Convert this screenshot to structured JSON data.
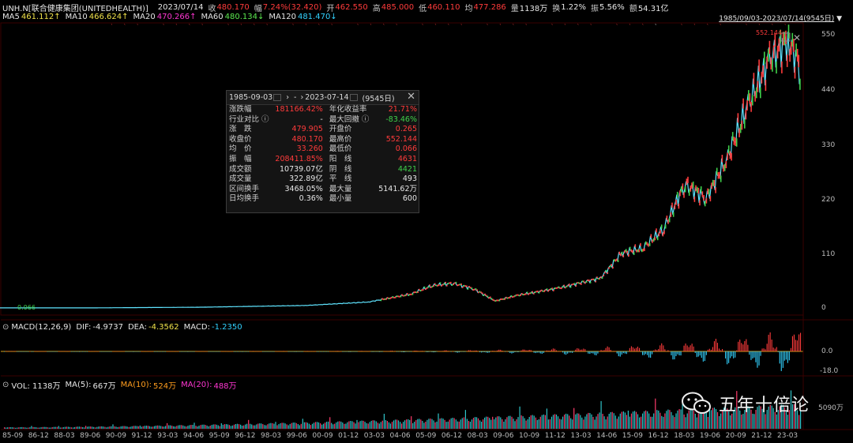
{
  "header": {
    "symbol": "UNH.N[联合健康集团(UNITEDHEALTH)]",
    "date": "2023/07/14",
    "close_lbl": "收",
    "close": "480.170",
    "chg_lbl": "幅",
    "chg": "7.24%(32.420)",
    "open_lbl": "开",
    "open": "462.550",
    "high_lbl": "高",
    "high": "485.000",
    "low_lbl": "低",
    "low": "460.110",
    "avg_lbl": "均",
    "avg": "477.286",
    "vol_lbl": "量",
    "vol": "1138万",
    "turn_lbl": "换",
    "turn": "1.22%",
    "amp_lbl": "振",
    "amp": "5.56%",
    "amt_lbl": "额",
    "amt": "54.31亿"
  },
  "ma": {
    "ma5_lbl": "MA5",
    "ma5": "461.112↑",
    "ma10_lbl": "MA10",
    "ma10": "466.624↑",
    "ma20_lbl": "MA20",
    "ma20": "470.266↑",
    "ma60_lbl": "MA60",
    "ma60": "480.134↓",
    "ma120_lbl": "MA120",
    "ma120": "481.470↓"
  },
  "range_label": "1985/09/03-2023/07/14(9545日)",
  "price_axis": [
    "550",
    "440",
    "330",
    "220",
    "110",
    "0"
  ],
  "low_marker": "0.066",
  "high_marker": "552.144",
  "popup": {
    "start_date": "1985-09-03",
    "sep": "-",
    "end_date": "2023-07-14",
    "days": "(9545日)",
    "close_x": "✕",
    "rows": [
      {
        "k1": "涨跌幅",
        "v1": "181166.42%",
        "c1": "red",
        "k2": "年化收益率",
        "v2": "21.71%",
        "c2": "red"
      },
      {
        "k1": "行业对比 ⓘ",
        "v1": "-",
        "c1": "white",
        "k2": "最大回撤 ⓘ",
        "v2": "-83.46%",
        "c2": "green"
      },
      {
        "k1": "涨　跌",
        "v1": "479.905",
        "c1": "red",
        "k2": "开盘价",
        "v2": "0.265",
        "c2": "red"
      },
      {
        "k1": "收盘价",
        "v1": "480.170",
        "c1": "red",
        "k2": "最高价",
        "v2": "552.144",
        "c2": "red"
      },
      {
        "k1": "均　价",
        "v1": "33.260",
        "c1": "red",
        "k2": "最低价",
        "v2": "0.066",
        "c2": "red"
      },
      {
        "k1": "振　幅",
        "v1": "208411.85%",
        "c1": "red",
        "k2": "阳　线",
        "v2": "4631",
        "c2": "red"
      },
      {
        "k1": "成交额",
        "v1": "10739.07亿",
        "c1": "white",
        "k2": "阴　线",
        "v2": "4421",
        "c2": "green"
      },
      {
        "k1": "成交量",
        "v1": "322.89亿",
        "c1": "white",
        "k2": "平　线",
        "v2": "493",
        "c2": "white"
      },
      {
        "k1": "区间换手",
        "v1": "3468.05%",
        "c1": "white",
        "k2": "最大量",
        "v2": "5141.62万",
        "c2": "white"
      },
      {
        "k1": "日均换手",
        "v1": "0.36%",
        "c1": "white",
        "k2": "最小量",
        "v2": "600",
        "c2": "white"
      }
    ]
  },
  "macd": {
    "label": "MACD(12,26,9)",
    "dif_lbl": "DIF:",
    "dif": "-4.9737",
    "dea_lbl": "DEA:",
    "dea": "-4.3562",
    "macd_lbl": "MACD:",
    "macd": "-1.2350",
    "axis": [
      "0.0",
      "-18.0"
    ]
  },
  "volume": {
    "label": "VOL: 1138万",
    "ma5_lbl": "MA(5):",
    "ma5": "667万",
    "ma10_lbl": "MA(10):",
    "ma10": "524万",
    "ma20_lbl": "MA(20):",
    "ma20": "488万",
    "axis": "5090万"
  },
  "x_axis": [
    "85-09",
    "86-12",
    "88-03",
    "89-06",
    "90-09",
    "91-12",
    "93-03",
    "94-06",
    "95-09",
    "96-12",
    "98-03",
    "99-06",
    "00-09",
    "01-12",
    "03-03",
    "04-06",
    "05-09",
    "06-12",
    "08-03",
    "09-06",
    "10-09",
    "11-12",
    "13-03",
    "14-06",
    "15-09",
    "16-12",
    "18-03",
    "19-06",
    "20-09",
    "21-12",
    "23-03"
  ],
  "watermark": "五年十倍论",
  "colors": {
    "up": "#ff3b3b",
    "down": "#3fd14a",
    "ma5": "#f0e24a",
    "ma10": "#ff36d2",
    "ma20": "#32d2ff"
  },
  "chart_data": {
    "type": "line",
    "x": [
      "1985",
      "1990",
      "1995",
      "2000",
      "2003",
      "2005",
      "2006",
      "2007",
      "2008",
      "2009",
      "2010",
      "2012",
      "2014",
      "2015",
      "2016",
      "2017",
      "2018",
      "2019",
      "2020",
      "2021",
      "2022",
      "2022.9",
      "2023.5"
    ],
    "series": [
      {
        "values": [
          0.07,
          0.2,
          1.5,
          5,
          12,
          28,
          45,
          50,
          38,
          14,
          25,
          40,
          60,
          110,
          120,
          160,
          250,
          220,
          300,
          410,
          500,
          540,
          480
        ]
      }
    ],
    "ylim": [
      0,
      560
    ]
  }
}
